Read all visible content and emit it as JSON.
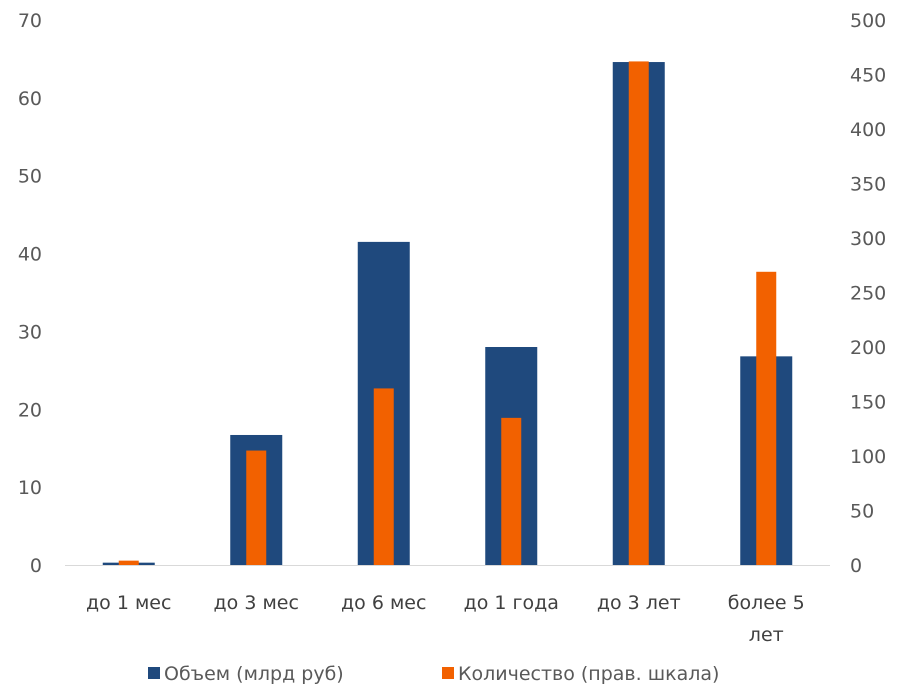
{
  "chart_data": {
    "type": "bar",
    "categories": [
      [
        "до 1 мес"
      ],
      [
        "до 3 мес"
      ],
      [
        "до 6 мес"
      ],
      [
        "до 1 года"
      ],
      [
        "до 3 лет"
      ],
      [
        "более 5",
        "лет"
      ]
    ],
    "series": [
      {
        "name": "Объем (млрд руб)",
        "axis": "left",
        "color": "#1F497D",
        "values": [
          0.3,
          16.7,
          41.5,
          28.0,
          64.6,
          26.8
        ]
      },
      {
        "name": "Количество (прав. шкала)",
        "axis": "right",
        "color": "#F26100",
        "values": [
          4,
          105,
          162,
          135,
          462,
          269
        ]
      }
    ],
    "y_left": {
      "min": 0,
      "max": 70,
      "ticks": [
        "0",
        "10",
        "20",
        "30",
        "40",
        "50",
        "60",
        "70"
      ]
    },
    "y_right": {
      "min": 0,
      "max": 500,
      "ticks": [
        "0",
        "50",
        "100",
        "150",
        "200",
        "250",
        "300",
        "350",
        "400",
        "450",
        "500"
      ]
    },
    "grid": false,
    "legend_position": "bottom"
  }
}
